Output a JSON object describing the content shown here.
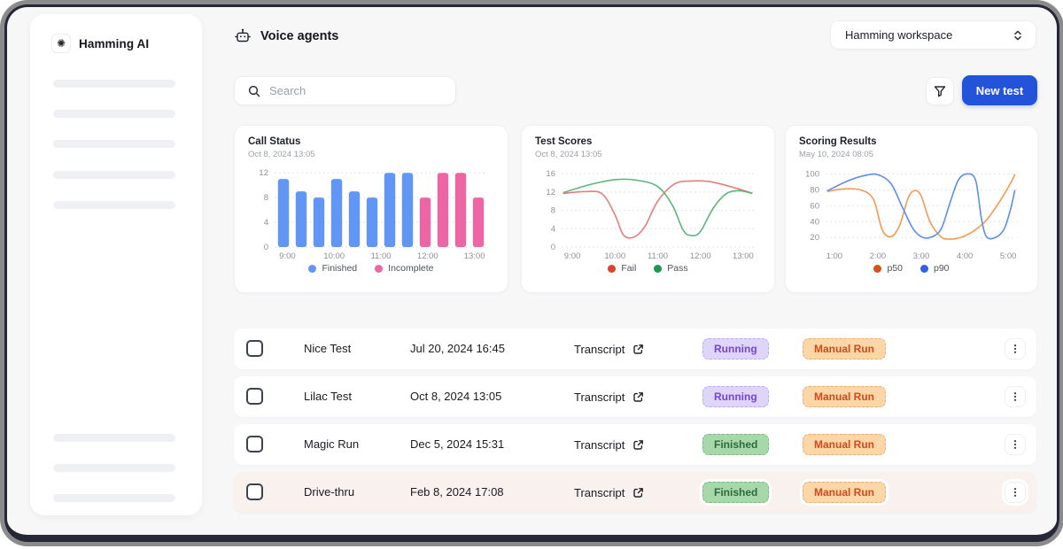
{
  "app": {
    "brand": "Hamming AI",
    "page_title": "Voice agents",
    "workspace": "Hamming workspace"
  },
  "toolbar": {
    "search_placeholder": "Search",
    "new_test_label": "New test"
  },
  "colors": {
    "accent_blue": "#2353d9",
    "bar_finished": "#6296f5",
    "bar_incomplete": "#ec66a4",
    "fail_line": "#e57d7d",
    "pass_line": "#5fb57b",
    "p50_line": "#f09a52",
    "p90_line": "#5b8df2",
    "running_badge_bg": "#ded5f8",
    "running_badge_text": "#7445e0",
    "finished_badge_bg": "#a6d8a9",
    "finished_badge_text": "#2d6a3d",
    "action_badge_bg": "#fbd7a7",
    "action_badge_text": "#d2491c",
    "highlight_row_bg": "#f8f1ed"
  },
  "chart_data": [
    {
      "type": "bar",
      "title": "Call Status",
      "subtitle": "Oct 8, 2024 13:05",
      "ylim": [
        0,
        12.6
      ],
      "yticks": [
        0,
        4,
        8,
        12
      ],
      "xticklabels": [
        "9:00",
        "10:00",
        "11:00",
        "12:00",
        "13:00"
      ],
      "values": [
        11,
        9,
        8,
        11,
        9,
        8,
        12,
        12,
        8,
        12,
        12,
        8
      ],
      "groups": [
        0,
        0,
        0,
        0,
        0,
        0,
        0,
        0,
        1,
        1,
        1,
        1
      ],
      "legend": [
        {
          "label": "Finished",
          "color": "#6296f5"
        },
        {
          "label": "Incomplete",
          "color": "#ec66a4"
        }
      ]
    },
    {
      "type": "line",
      "title": "Test Scores",
      "subtitle": "Oct 8, 2024 13:05",
      "ylim": [
        0,
        17
      ],
      "yticks": [
        0,
        4,
        8,
        12,
        16
      ],
      "xlim": [
        8.75,
        13.25
      ],
      "xtickvalues": [
        9,
        10,
        11,
        12,
        13
      ],
      "xticklabels": [
        "9:00",
        "10:00",
        "11:00",
        "12:00",
        "13:00"
      ],
      "legend": [
        {
          "label": "Fail",
          "color": "#d9452c"
        },
        {
          "label": "Pass",
          "color": "#1f9750"
        }
      ],
      "series": [
        {
          "name": "Fail",
          "color": "#e57d7d",
          "points": [
            [
              8.8,
              11.7
            ],
            [
              9.3,
              12.1
            ],
            [
              9.7,
              11.6
            ],
            [
              10.0,
              7.0
            ],
            [
              10.2,
              2.6
            ],
            [
              10.45,
              2.2
            ],
            [
              10.7,
              4.5
            ],
            [
              11.0,
              10.0
            ],
            [
              11.4,
              13.8
            ],
            [
              11.8,
              14.4
            ],
            [
              12.2,
              14.3
            ],
            [
              12.7,
              13.2
            ],
            [
              13.2,
              11.8
            ]
          ]
        },
        {
          "name": "Pass",
          "color": "#5fb57b",
          "points": [
            [
              8.8,
              11.9
            ],
            [
              9.4,
              13.6
            ],
            [
              10.0,
              14.7
            ],
            [
              10.5,
              14.6
            ],
            [
              11.0,
              13.2
            ],
            [
              11.35,
              9.0
            ],
            [
              11.6,
              3.6
            ],
            [
              11.8,
              2.5
            ],
            [
              12.0,
              3.4
            ],
            [
              12.3,
              8.5
            ],
            [
              12.6,
              11.6
            ],
            [
              12.9,
              12.3
            ],
            [
              13.2,
              11.7
            ]
          ]
        }
      ]
    },
    {
      "type": "line",
      "title": "Scoring Results",
      "subtitle": "May 10, 2024 08:05",
      "ylim": [
        8,
        106
      ],
      "yticks": [
        20,
        40,
        60,
        80,
        100
      ],
      "xlim": [
        0.8,
        5.2
      ],
      "xtickvalues": [
        1,
        2,
        3,
        4,
        5
      ],
      "xticklabels": [
        "1:00",
        "2:00",
        "3:00",
        "4:00",
        "5:00"
      ],
      "legend": [
        {
          "label": "p50",
          "color": "#d4521c"
        },
        {
          "label": "p90",
          "color": "#2e62e8"
        }
      ],
      "series": [
        {
          "name": "p50",
          "color": "#f09a52",
          "points": [
            [
              0.85,
              78
            ],
            [
              1.2,
              81
            ],
            [
              1.6,
              80
            ],
            [
              1.9,
              68
            ],
            [
              2.1,
              30
            ],
            [
              2.3,
              21
            ],
            [
              2.5,
              35
            ],
            [
              2.7,
              70
            ],
            [
              2.85,
              79
            ],
            [
              3.0,
              72
            ],
            [
              3.2,
              40
            ],
            [
              3.45,
              21
            ],
            [
              3.65,
              18
            ],
            [
              3.9,
              20
            ],
            [
              4.2,
              28
            ],
            [
              4.5,
              42
            ],
            [
              4.8,
              65
            ],
            [
              5.05,
              88
            ],
            [
              5.15,
              99
            ]
          ]
        },
        {
          "name": "p90",
          "color": "#5b8df2",
          "points": [
            [
              0.85,
              79
            ],
            [
              1.3,
              91
            ],
            [
              1.7,
              98
            ],
            [
              2.0,
              99
            ],
            [
              2.3,
              88
            ],
            [
              2.55,
              60
            ],
            [
              2.8,
              32
            ],
            [
              3.0,
              21
            ],
            [
              3.2,
              20
            ],
            [
              3.45,
              30
            ],
            [
              3.65,
              62
            ],
            [
              3.85,
              92
            ],
            [
              4.05,
              100
            ],
            [
              4.25,
              92
            ],
            [
              4.38,
              45
            ],
            [
              4.5,
              21
            ],
            [
              4.7,
              20
            ],
            [
              4.9,
              30
            ],
            [
              5.05,
              55
            ],
            [
              5.15,
              79
            ]
          ]
        }
      ]
    }
  ],
  "table": {
    "rows": [
      {
        "name": "Nice Test",
        "date": "Jul 20, 2024 16:45",
        "transcript_label": "Transcript",
        "status": "Running",
        "status_type": "running",
        "action": "Manual Run",
        "highlighted": false
      },
      {
        "name": "Lilac Test",
        "date": "Oct 8, 2024 13:05",
        "transcript_label": "Transcript",
        "status": "Running",
        "status_type": "running",
        "action": "Manual Run",
        "highlighted": false
      },
      {
        "name": "Magic Run",
        "date": "Dec 5, 2024 15:31",
        "transcript_label": "Transcript",
        "status": "Finished",
        "status_type": "finished",
        "action": "Manual Run",
        "highlighted": false
      },
      {
        "name": "Drive-thru",
        "date": "Feb 8, 2024 17:08",
        "transcript_label": "Transcript",
        "status": "Finished",
        "status_type": "finished",
        "action": "Manual Run",
        "highlighted": true
      }
    ]
  }
}
